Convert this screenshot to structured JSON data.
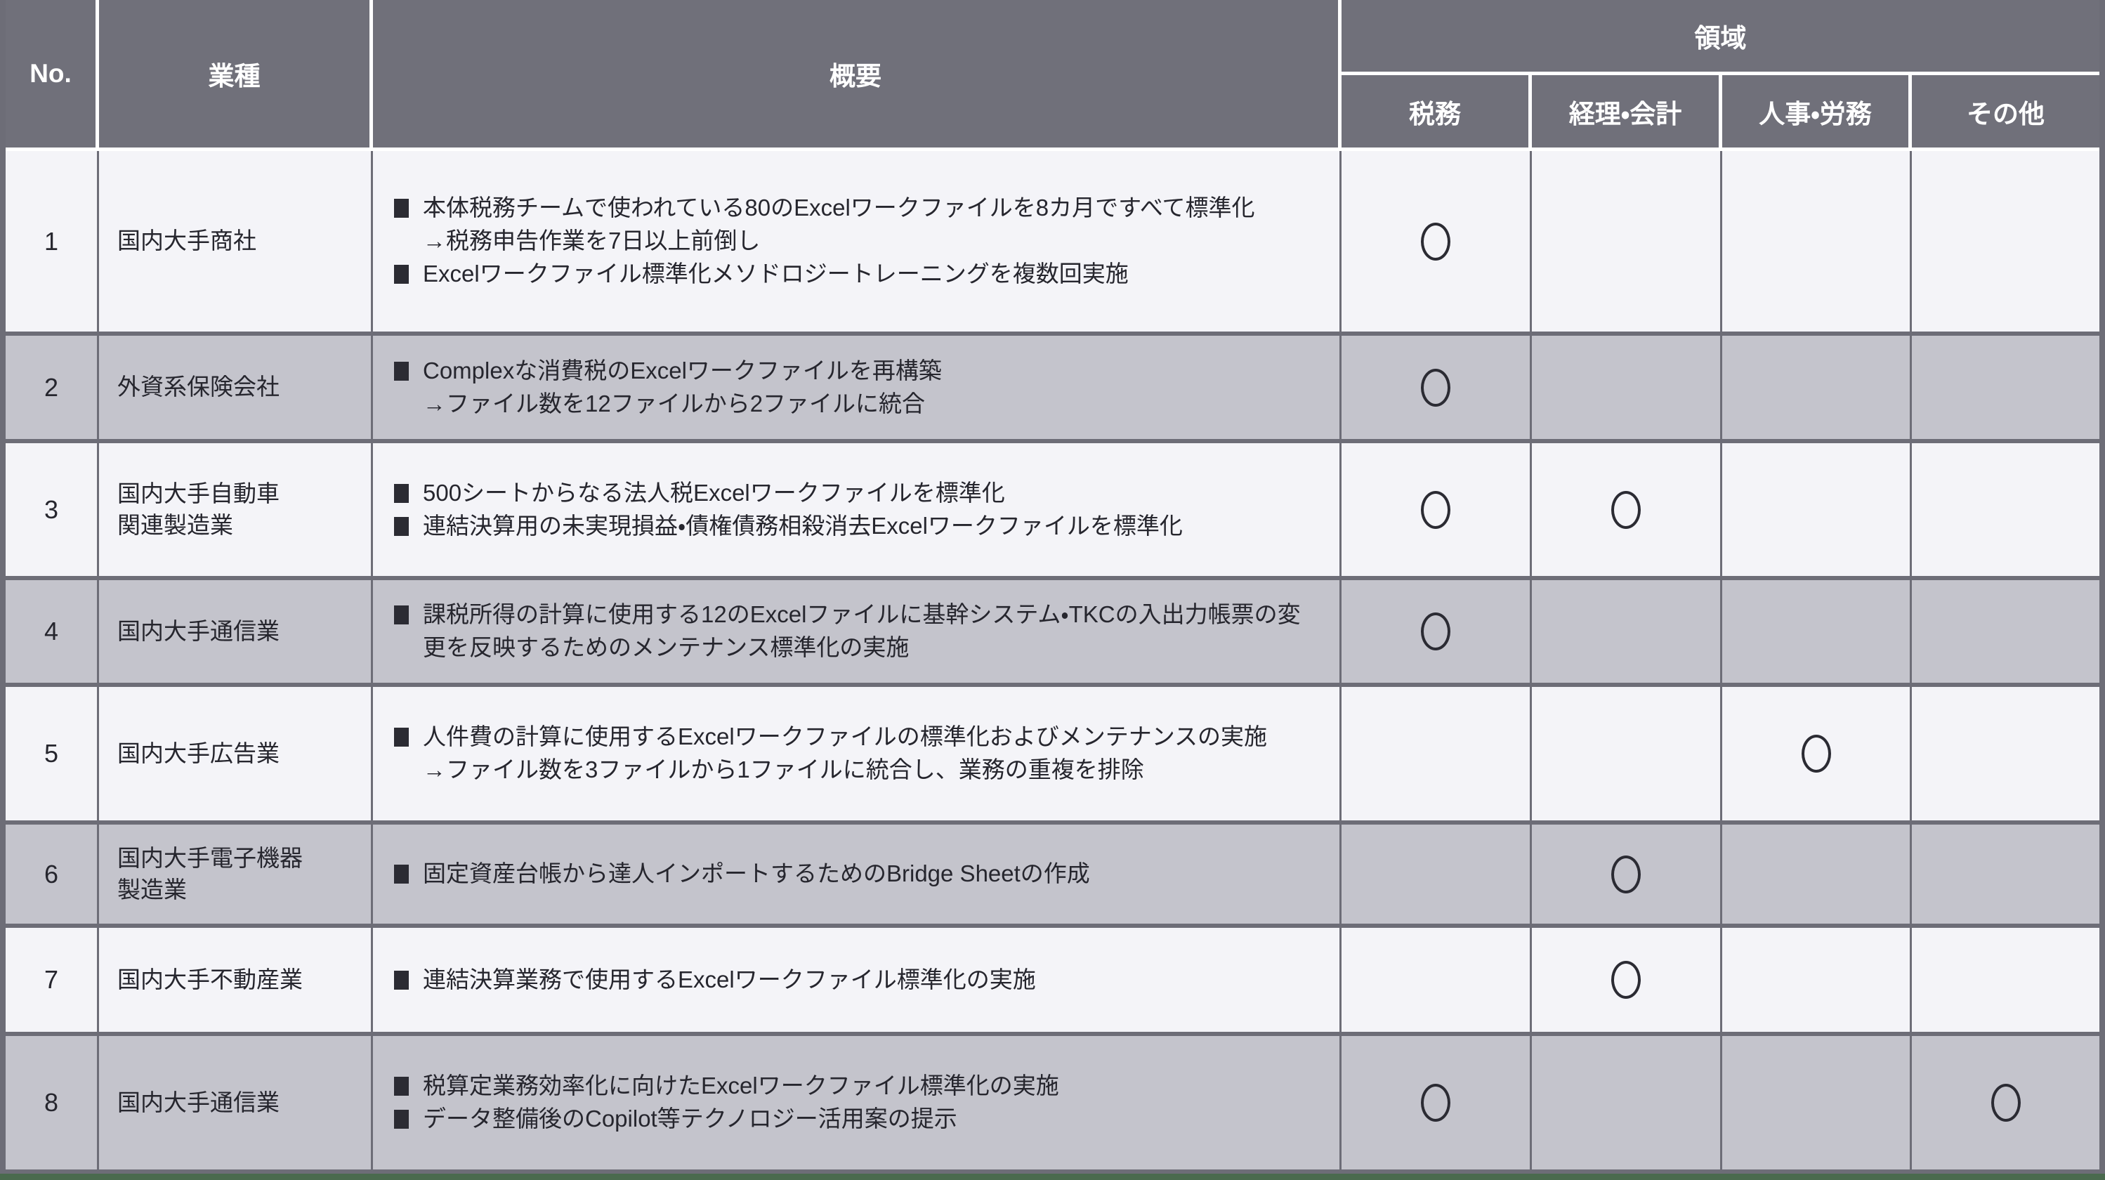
{
  "colors": {
    "header_bg": "#70707A",
    "row_light": "#F4F4F8",
    "row_dark": "#C4C4CC",
    "grid": "#6D6D77",
    "text_dark": "#26262E",
    "header_text": "#FFFFFF",
    "bottom_bar": "#4A6A4E"
  },
  "table": {
    "columns": {
      "no": "No.",
      "industry": "業種",
      "overview": "概要",
      "domain_group": "領域",
      "domains": [
        "税務",
        "経理・会計",
        "人事・労務",
        "その他"
      ]
    },
    "circle_mark": "○",
    "bullet_icon": "■",
    "rows": [
      {
        "no": "1",
        "industry": "国内大手商社",
        "items": [
          {
            "text": "本体税務チームで使われている80のExcelワークファイルを8カ月ですべて標準化",
            "note": "→税務申告作業を7日以上前倒し"
          },
          {
            "text": "Excelワークファイル標準化メソドロジートレーニングを複数回実施"
          }
        ],
        "marks": [
          1,
          0,
          0,
          0
        ]
      },
      {
        "no": "2",
        "industry": "外資系保険会社",
        "items": [
          {
            "text": "Complexな消費税のExcelワークファイルを再構築",
            "note": "→ファイル数を12ファイルから2ファイルに統合"
          }
        ],
        "marks": [
          1,
          0,
          0,
          0
        ]
      },
      {
        "no": "3",
        "industry": "国内大手自動車\n関連製造業",
        "items": [
          {
            "text": "500シートからなる法人税Excelワークファイルを標準化"
          },
          {
            "text": "連結決算用の未実現損益・債権債務相殺消去Excelワークファイルを標準化"
          }
        ],
        "marks": [
          1,
          1,
          0,
          0
        ]
      },
      {
        "no": "4",
        "industry": "国内大手通信業",
        "items": [
          {
            "text": "課税所得の計算に使用する12のExcelファイルに基幹システム・TKCの入出力帳票の変更を反映するためのメンテナンス標準化の実施"
          }
        ],
        "marks": [
          1,
          0,
          0,
          0
        ]
      },
      {
        "no": "5",
        "industry": "国内大手広告業",
        "items": [
          {
            "text": "人件費の計算に使用するExcelワークファイルの標準化およびメンテナンスの実施",
            "note": "→ファイル数を3ファイルから1ファイルに統合し、業務の重複を排除"
          }
        ],
        "marks": [
          0,
          0,
          1,
          0
        ]
      },
      {
        "no": "6",
        "industry": "国内大手電子機器\n製造業",
        "items": [
          {
            "text": "固定資産台帳から達人インポートするためのBridge Sheetの作成"
          }
        ],
        "marks": [
          0,
          1,
          0,
          0
        ]
      },
      {
        "no": "7",
        "industry": "国内大手不動産業",
        "items": [
          {
            "text": "連結決算業務で使用するExcelワークファイル標準化の実施"
          }
        ],
        "marks": [
          0,
          1,
          0,
          0
        ]
      },
      {
        "no": "8",
        "industry": "国内大手通信業",
        "items": [
          {
            "text": "税算定業務効率化に向けたExcelワークファイル標準化の実施"
          },
          {
            "text": "データ整備後のCopilot等テクノロジー活用案の提示"
          }
        ],
        "marks": [
          1,
          0,
          0,
          1
        ]
      }
    ]
  }
}
